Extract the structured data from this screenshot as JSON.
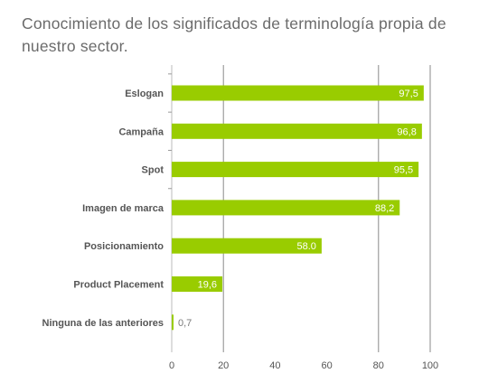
{
  "chart_data": {
    "type": "bar",
    "orientation": "horizontal",
    "title": "Conocimiento de los significados de terminología propia de nuestro sector.",
    "categories": [
      "Eslogan",
      "Campaña",
      "Spot",
      "Imagen de marca",
      "Posicionamiento",
      "Product Placement",
      "Ninguna de las anteriores"
    ],
    "values": [
      97.5,
      96.8,
      95.5,
      88.2,
      58.0,
      19.6,
      0.7
    ],
    "value_labels": [
      "97,5",
      "96,8",
      "95,5",
      "88,2",
      "58.0",
      "19,6",
      "0,7"
    ],
    "xlim": [
      0,
      100
    ],
    "x_ticks": [
      0,
      20,
      40,
      60,
      80,
      100
    ],
    "x_tick_labels": [
      "0",
      "20",
      "40",
      "60",
      "80",
      "100"
    ],
    "xlabel": "",
    "ylabel": "",
    "bar_color": "#99cc00",
    "grid_color": "#8a8a8a",
    "grid": "vertical lines at 20, 80, 100",
    "legend": "none"
  }
}
